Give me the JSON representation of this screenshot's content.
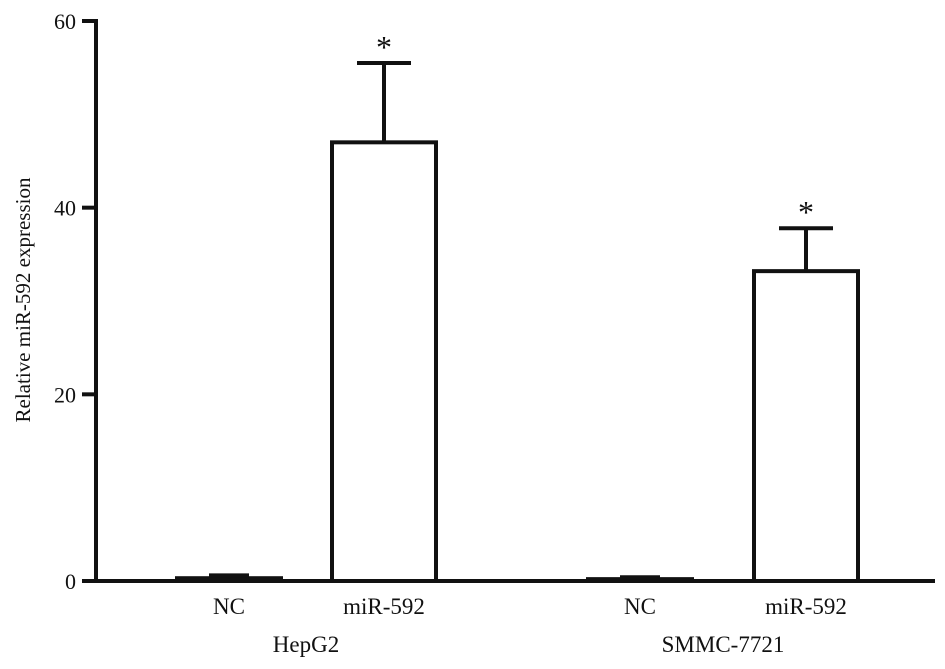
{
  "chart_data": {
    "type": "bar",
    "title": "",
    "xlabel": "",
    "ylabel": "Relative miR-592 expression",
    "ylim": [
      0,
      60
    ],
    "yticks": [
      0,
      20,
      40,
      60
    ],
    "groups": [
      {
        "name": "HepG2",
        "bars": [
          {
            "category": "NC",
            "value": 0.3,
            "error": 0.3,
            "significance": ""
          },
          {
            "category": "miR-592",
            "value": 47,
            "error": 8.5,
            "significance": "*"
          }
        ]
      },
      {
        "name": "SMMC-7721",
        "bars": [
          {
            "category": "NC",
            "value": 0.2,
            "error": 0.2,
            "significance": ""
          },
          {
            "category": "miR-592",
            "value": 33.2,
            "error": 4.6,
            "significance": "*"
          }
        ]
      }
    ],
    "bar_fill": "#ffffff",
    "stroke_color": "#111111",
    "grid": false,
    "legend": "none"
  }
}
